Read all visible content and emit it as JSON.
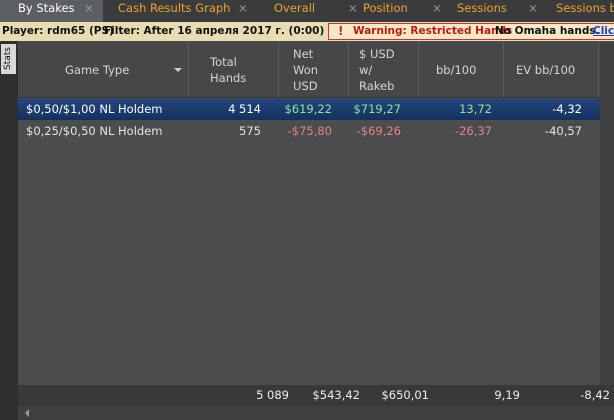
{
  "tabs": [
    {
      "label": "By Stakes",
      "close": "×"
    },
    {
      "label": "Cash Results Graph",
      "close": "×"
    },
    {
      "label": "Overall",
      "close": "×"
    },
    {
      "label": "Position",
      "close": "×"
    },
    {
      "label": "Sessions",
      "close": "×"
    },
    {
      "label": "Sessions b"
    }
  ],
  "filter_bar": {
    "player": "Player: rdm65 (PS)",
    "filter": "Filter: After 16 апреля 2017 г. (0:00)",
    "warning_icon": "!",
    "warning": "Warning: Restricted Hands",
    "note": "No Omaha hands.",
    "link": "Clic"
  },
  "side_tab": "Stats",
  "table": {
    "headers": [
      [
        "Game Type"
      ],
      [
        "Total",
        "Hands"
      ],
      [
        "Net",
        "Won",
        "USD"
      ],
      [
        "$ USD",
        "w/",
        "Rakeb"
      ],
      [
        "bb/100"
      ],
      [
        "EV bb/100"
      ]
    ],
    "rows": [
      [
        "$0,50/$1,00 NL Holdem",
        "4 514",
        "$619,22",
        "$719,27",
        "13,72",
        "-4,32"
      ],
      [
        "$0,25/$0,50 NL Holdem",
        "575",
        "-$75,80",
        "-$69,26",
        "-26,37",
        "-40,57"
      ]
    ],
    "totals": [
      "",
      "5 089",
      "$543,42",
      "$650,01",
      "9,19",
      "-8,42"
    ]
  }
}
